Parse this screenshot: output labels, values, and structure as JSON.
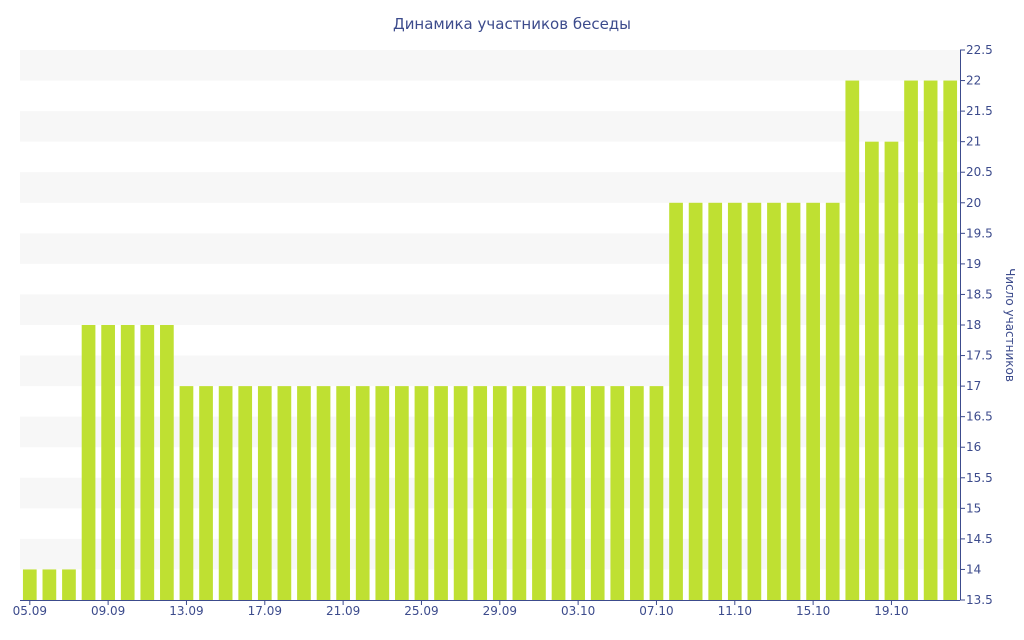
{
  "chart_data": {
    "type": "bar",
    "title": "Динамика участников беседы",
    "xlabel": "",
    "ylabel": "Число участников",
    "ylim": [
      13.5,
      22.5
    ],
    "ytick_step": 0.5,
    "grid": "horizontal bands",
    "colors": {
      "bar": "#bfe032",
      "band": "#f7f7f7",
      "text": "#3c4b8c",
      "axis": "#3c4b8c"
    },
    "x_tick_labels": [
      "05.09",
      "09.09",
      "13.09",
      "17.09",
      "21.09",
      "25.09",
      "29.09",
      "03.10",
      "07.10",
      "11.10",
      "15.10",
      "19.10"
    ],
    "x_tick_every": 4,
    "categories": [
      "05.09",
      "06.09",
      "07.09",
      "08.09",
      "09.09",
      "10.09",
      "11.09",
      "12.09",
      "13.09",
      "14.09",
      "15.09",
      "16.09",
      "17.09",
      "18.09",
      "19.09",
      "20.09",
      "21.09",
      "22.09",
      "23.09",
      "24.09",
      "25.09",
      "26.09",
      "27.09",
      "28.09",
      "29.09",
      "30.09",
      "01.10",
      "02.10",
      "03.10",
      "04.10",
      "05.10",
      "06.10",
      "07.10",
      "08.10",
      "09.10",
      "10.10",
      "11.10",
      "12.10",
      "13.10",
      "14.10",
      "15.10",
      "16.10",
      "17.10",
      "18.10",
      "19.10",
      "20.10",
      "21.10",
      "22.10"
    ],
    "values": [
      14,
      14,
      14,
      18,
      18,
      18,
      18,
      18,
      17,
      17,
      17,
      17,
      17,
      17,
      17,
      17,
      17,
      17,
      17,
      17,
      17,
      17,
      17,
      17,
      17,
      17,
      17,
      17,
      17,
      17,
      17,
      17,
      17,
      20,
      20,
      20,
      20,
      20,
      20,
      20,
      20,
      20,
      22,
      21,
      21,
      22,
      22,
      22
    ]
  }
}
